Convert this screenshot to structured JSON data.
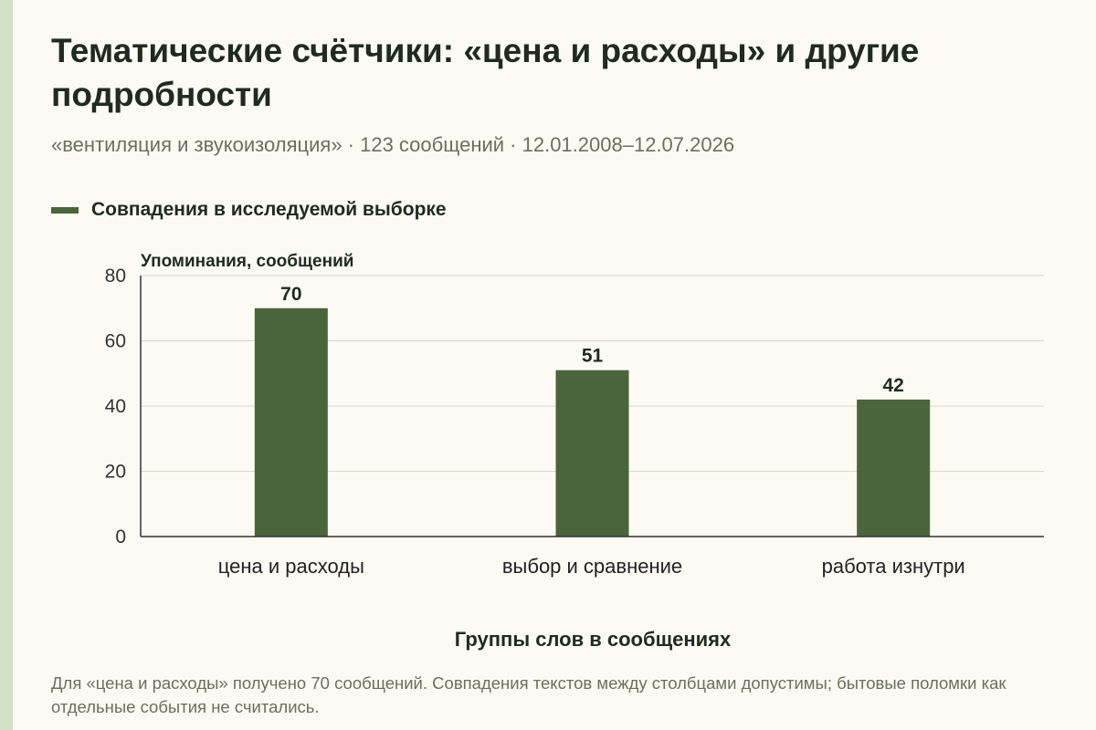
{
  "title": "Тематические счётчики: «цена и расходы» и другие подробности",
  "subtitle": "«вентиляция и звукоизоляция» · 123 сообщений · 12.01.2008–12.07.2026",
  "legend": {
    "label": "Совпадения в исследуемой выборке"
  },
  "footnote": "Для «цена и расходы» получено 70 сообщений. Совпадения текстов между столбцами допустимы; бытовые поломки как отдельные события не считались.",
  "colors": {
    "bar": "#4a653a",
    "background": "#fcfaf2",
    "grid": "#d9d8cc",
    "accent_strip": "#d5e1c4"
  },
  "chart_data": {
    "type": "bar",
    "categories": [
      "цена и расходы",
      "выбор и сравнение",
      "работа изнутри"
    ],
    "series": [
      {
        "name": "Совпадения в исследуемой выборке",
        "values": [
          70,
          51,
          42
        ]
      }
    ],
    "xlabel": "Группы слов в сообщениях",
    "ylabel": "Упоминания, сообщений",
    "ylim": [
      0,
      80
    ],
    "yticks": [
      0,
      20,
      40,
      60,
      80
    ],
    "grid": true,
    "data_labels": true,
    "legend_position": "top-left"
  }
}
